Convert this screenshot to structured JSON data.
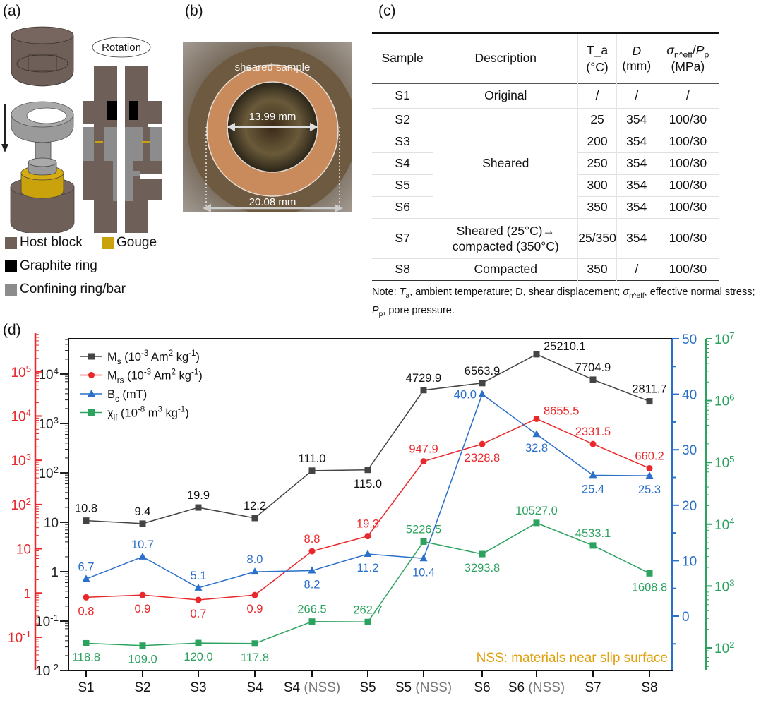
{
  "panels": {
    "a": "(a)",
    "b": "(b)",
    "c": "(c)",
    "d": "(d)"
  },
  "panel_a": {
    "rotation_label": "Rotation",
    "legend": [
      {
        "label": "Host block",
        "color": "#6e5f58"
      },
      {
        "label": "Gouge",
        "color": "#c9a20c"
      },
      {
        "label": "Graphite ring",
        "color": "#000000"
      },
      {
        "label": "Confining ring/bar",
        "color": "#8c8c8c"
      }
    ]
  },
  "panel_b": {
    "sample_label": "sheared sample",
    "inner_diameter": "13.99 mm",
    "outer_diameter": "20.08 mm"
  },
  "panel_c": {
    "headers": [
      "Sample",
      "Description",
      "T_a (°C)",
      "D (mm)",
      "σ_n^eff/P_p (MPa)"
    ],
    "rows": [
      {
        "sample": "S1",
        "description": "Original",
        "ta": "/",
        "d": "/",
        "stress": "/"
      },
      {
        "sample": "S2",
        "description": "Sheared",
        "ta": "25",
        "d": "354",
        "stress": "100/30"
      },
      {
        "sample": "S3",
        "description": "",
        "ta": "200",
        "d": "354",
        "stress": "100/30"
      },
      {
        "sample": "S4",
        "description": "",
        "ta": "250",
        "d": "354",
        "stress": "100/30"
      },
      {
        "sample": "S5",
        "description": "",
        "ta": "300",
        "d": "354",
        "stress": "100/30"
      },
      {
        "sample": "S6",
        "description": "",
        "ta": "350",
        "d": "354",
        "stress": "100/30"
      },
      {
        "sample": "S7",
        "description": "Sheared (25°C)→ compacted (350°C)",
        "ta": "25/350",
        "d": "354",
        "stress": "100/30"
      },
      {
        "sample": "S8",
        "description": "Compacted",
        "ta": "350",
        "d": "/",
        "stress": "100/30"
      }
    ],
    "note": "Note: T_a, ambient temperature; D, shear displacement; σ_n^eff, effective normal stress; P_p, pore pressure."
  },
  "chart_data": {
    "type": "line",
    "categories": [
      "S1",
      "S2",
      "S3",
      "S4",
      "S4 (NSS)",
      "S5",
      "S5 (NSS)",
      "S6",
      "S6 (NSS)",
      "S7",
      "S8"
    ],
    "annotation": "NSS: materials near slip surface",
    "grid": false,
    "legend_position": "top-left",
    "axes": {
      "left_black": {
        "scale": "log",
        "range": [
          0.01,
          50000
        ],
        "ticks": [
          "10^-2",
          "10^-1",
          "1",
          "10",
          "10^2",
          "10^3",
          "10^4"
        ],
        "color": "#222222"
      },
      "left_red": {
        "scale": "log",
        "range": [
          0.018,
          560000
        ],
        "ticks": [
          "10^-1",
          "1",
          "10",
          "10^2",
          "10^3",
          "10^4",
          "10^5"
        ],
        "color": "#e8282b"
      },
      "right_blue": {
        "scale": "linear",
        "range": [
          -9.8,
          50
        ],
        "ticks": [
          "0",
          "10",
          "20",
          "30",
          "40",
          "50"
        ],
        "color": "#2a6fc9"
      },
      "right_green": {
        "scale": "log",
        "range": [
          40,
          10000000
        ],
        "ticks": [
          "10^2",
          "10^3",
          "10^4",
          "10^5",
          "10^6",
          "10^7"
        ],
        "color": "#2ca25f"
      }
    },
    "series": [
      {
        "name": "M_s (10^-3 Am^2 kg^-1)",
        "axis": "left_black",
        "marker": "square",
        "color": "#444444",
        "values": [
          10.8,
          9.4,
          19.9,
          12.2,
          111.0,
          115.0,
          4729.9,
          6563.9,
          25210.1,
          7704.9,
          2811.7
        ],
        "labels": [
          "10.8",
          "9.4",
          "19.9",
          "12.2",
          "111.0",
          "115.0",
          "4729.9",
          "6563.9",
          "25210.1",
          "7704.9",
          "2811.7"
        ]
      },
      {
        "name": "M_rs (10^-3 Am^2 kg^-1)",
        "axis": "left_red",
        "marker": "circle",
        "color": "#e8282b",
        "values": [
          0.8,
          0.9,
          0.7,
          0.9,
          8.8,
          19.3,
          947.9,
          2328.8,
          8655.5,
          2331.5,
          660.2
        ],
        "labels": [
          "0.8",
          "0.9",
          "0.7",
          "0.9",
          "8.8",
          "19.3",
          "947.9",
          "2328.8",
          "8655.5",
          "2331.5",
          "660.2"
        ]
      },
      {
        "name": "B_c (mT)",
        "axis": "right_blue",
        "marker": "triangle",
        "color": "#2a6fc9",
        "values": [
          6.7,
          10.7,
          5.1,
          8.0,
          8.2,
          11.2,
          10.4,
          40.0,
          32.8,
          25.4,
          25.3
        ],
        "labels": [
          "6.7",
          "10.7",
          "5.1",
          "8.0",
          "8.2",
          "11.2",
          "10.4",
          "40.0",
          "32.8",
          "25.4",
          "25.3"
        ]
      },
      {
        "name": "χ_lf (10^-8 m^3 kg^-1)",
        "axis": "right_green",
        "marker": "square",
        "color": "#2ca25f",
        "values": [
          118.8,
          109.0,
          120.0,
          117.8,
          266.5,
          262.7,
          5226.5,
          3293.8,
          10527.0,
          4533.1,
          1608.8
        ],
        "labels": [
          "118.8",
          "109.0",
          "120.0",
          "117.8",
          "266.5",
          "262.7",
          "5226.5",
          "3293.8",
          "10527.0",
          "4533.1",
          "1608.8"
        ]
      }
    ]
  }
}
